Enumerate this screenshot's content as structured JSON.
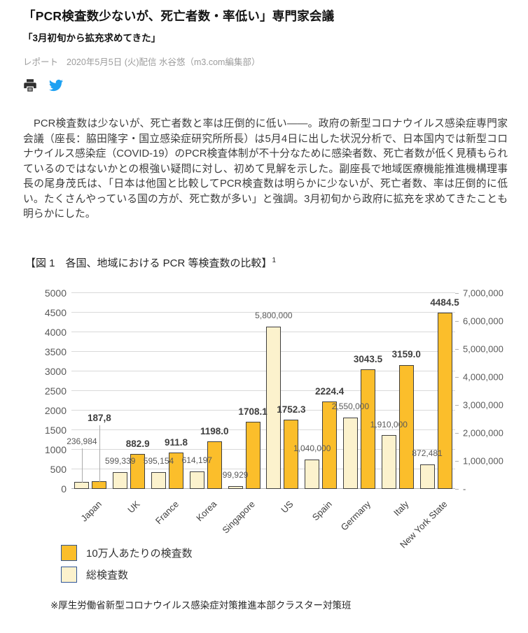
{
  "article": {
    "title": "「PCR検査数少ないが、死亡者数・率低い」専門家会議",
    "subtitle": "「3月初旬から拡充求めてきた」",
    "meta": {
      "category": "レポート",
      "byline": "2020年5月5日 (火)配信 水谷悠（m3.com編集部）"
    },
    "share_icons": [
      {
        "name": "print-icon",
        "color": "#2f2f2f"
      },
      {
        "name": "twitter-icon",
        "color": "#1da1f2"
      }
    ],
    "body": "　PCR検査数は少ないが、死亡者数と率は圧倒的に低い――。政府の新型コロナウイルス感染症専門家会議（座長：脇田隆字・国立感染症研究所所長）は5月4日に出した状況分析で、日本国内では新型コロナウイルス感染症（COVID-19）のPCR検査体制が不十分なために感染者数、死亡者数が低く見積もられているのではないかとの根強い疑問に対し、初めて見解を示した。副座長で地域医療機能推進機構理事長の尾身茂氏は、「日本は他国と比較してPCR検査数は明らかに少ないが、死亡者数、率は圧倒的に低い。たくさんやっている国の方が、死亡数が多い」と強調。3月初旬から政府に拡充を求めてきたことも明らかにした。"
  },
  "figure": {
    "caption": "【図 1　各国、地域における PCR 等検査数の比較】",
    "caption_sup": "1",
    "footnote": "※厚生労働省新型コロナウイルス感染症対策推進本部クラスター対策班"
  },
  "chart_data": {
    "type": "bar",
    "title": "各国、地域におけるPCR等検査数の比較",
    "categories": [
      "Japan",
      "UK",
      "France",
      "Korea",
      "Singapore",
      "US",
      "Spain",
      "Germany",
      "Italy",
      "New York State"
    ],
    "series": [
      {
        "name": "総検査数",
        "axis": "right",
        "color": "#FCF2CD",
        "border": "#3f3f3f",
        "values": [
          236984,
          599339,
          595154,
          614197,
          99929,
          5800000,
          1040000,
          2550000,
          1910000,
          872481
        ],
        "labels": [
          "236,984",
          "599,339",
          "595,154",
          "614,197",
          "99,929",
          "5,800,000",
          "1,040,000",
          "2,550,000",
          "1,910,000",
          "872,481"
        ],
        "label_style": {
          "size": 12,
          "weight": 400,
          "color": "#595959"
        },
        "label_default_offset": 10,
        "label_overrides": {
          "0": {
            "offset": 52,
            "leader": true
          }
        }
      },
      {
        "name": "10万人あたりの検査数",
        "axis": "left",
        "color": "#FBBE2B",
        "border": "#3f3f3f",
        "values": [
          187.8,
          882.9,
          911.8,
          1198.0,
          1708.1,
          1752.3,
          2224.4,
          3043.5,
          3159.0,
          4484.5
        ],
        "labels": [
          "187,8",
          "882.9",
          "911.8",
          "1198.0",
          "1708.1",
          "1752.3",
          "2224.4",
          "3043.5",
          "3159.0",
          "4484.5"
        ],
        "label_style": {
          "size": 13.5,
          "weight": 700,
          "color": "#3f3f3f"
        },
        "label_default_offset": 8,
        "label_overrides": {
          "0": {
            "offset": 84,
            "leader": true
          }
        }
      }
    ],
    "left_axis": {
      "min": 0,
      "max": 5000,
      "step": 500,
      "ticks": [
        "5000",
        "4500",
        "4000",
        "3500",
        "3000",
        "2500",
        "2000",
        "1500",
        "1000",
        "500",
        "0"
      ]
    },
    "right_axis": {
      "min": 0,
      "max": 7000000,
      "step": 1000000,
      "ticks": [
        "7,000,000",
        "6,000,000",
        "5,000,000",
        "4,000,000",
        "3,000,000",
        "2,000,000",
        "1,000,000",
        "-"
      ]
    },
    "grid": true,
    "legend_position": "bottom-left",
    "legend_border": "#2f5597",
    "legend": [
      {
        "label": "10万人あたりの検査数",
        "color": "#FBBE2B"
      },
      {
        "label": "総検査数",
        "color": "#FCF2CD"
      }
    ]
  }
}
